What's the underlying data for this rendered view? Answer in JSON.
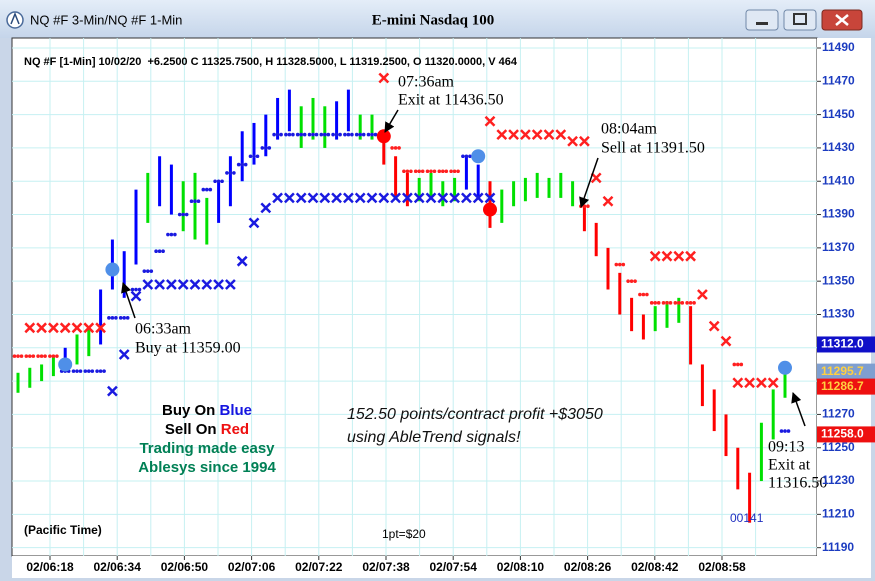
{
  "window": {
    "title": "NQ #F 3-Min/NQ #F 1-Min"
  },
  "chart_data": {
    "type": "price-bars",
    "title": "E-mini Nasdaq 100",
    "header": "NQ #F [1-Min] 10/02/20  +6.2500 C 11325.7500, H 11328.5000, L 11319.2500, O 11320.0000, V 464",
    "ylim": [
      11185,
      11496
    ],
    "yticks": [
      11190,
      11210,
      11230,
      11250,
      11270,
      11290,
      11310,
      11330,
      11350,
      11370,
      11390,
      11410,
      11430,
      11450,
      11470,
      11490
    ],
    "xticks": [
      "02/06:18",
      "02/06:34",
      "02/06:50",
      "02/07:06",
      "02/07:22",
      "02/07:38",
      "02/07:54",
      "02/08:10",
      "02/08:26",
      "02/08:42",
      "02/08:58"
    ],
    "grid": true,
    "palette": {
      "blue": "#0000ff",
      "green": "#00e000",
      "red": "#ff0000"
    },
    "bars": {
      "high": [
        11295,
        11298,
        11300,
        11305,
        11310,
        11318,
        11322,
        11345,
        11375,
        11368,
        11405,
        11415,
        11425,
        11420,
        11410,
        11415,
        11400,
        11410,
        11425,
        11440,
        11445,
        11450,
        11460,
        11465,
        11455,
        11460,
        11455,
        11458,
        11465,
        11450,
        11450,
        11440,
        11425,
        11415,
        11412,
        11415,
        11410,
        11412,
        11425,
        11420,
        11410,
        11405,
        11410,
        11412,
        11415,
        11412,
        11415,
        11410,
        11395,
        11385,
        11370,
        11355,
        11340,
        11330,
        11335,
        11338,
        11340,
        11335,
        11300,
        11285,
        11270,
        11250,
        11235,
        11265,
        11285,
        11300
      ],
      "low": [
        11283,
        11286,
        11290,
        11293,
        11298,
        11300,
        11305,
        11312,
        11345,
        11340,
        11360,
        11385,
        11395,
        11390,
        11380,
        11375,
        11372,
        11385,
        11395,
        11410,
        11420,
        11425,
        11435,
        11440,
        11430,
        11435,
        11430,
        11435,
        11440,
        11435,
        11435,
        11420,
        11400,
        11395,
        11398,
        11400,
        11395,
        11398,
        11405,
        11400,
        11382,
        11385,
        11395,
        11398,
        11400,
        11400,
        11400,
        11395,
        11380,
        11365,
        11345,
        11330,
        11320,
        11315,
        11320,
        11322,
        11325,
        11300,
        11275,
        11260,
        11245,
        11225,
        11205,
        11230,
        11255,
        11280
      ],
      "trend": [
        "green",
        "green",
        "green",
        "green",
        "blue",
        "green",
        "green",
        "blue",
        "blue",
        "blue",
        "blue",
        "green",
        "blue",
        "blue",
        "green",
        "green",
        "green",
        "blue",
        "blue",
        "blue",
        "blue",
        "blue",
        "blue",
        "blue",
        "green",
        "green",
        "green",
        "blue",
        "blue",
        "green",
        "green",
        "red",
        "red",
        "red",
        "green",
        "green",
        "green",
        "green",
        "blue",
        "blue",
        "red",
        "green",
        "green",
        "green",
        "green",
        "green",
        "green",
        "green",
        "red",
        "red",
        "red",
        "red",
        "red",
        "red",
        "green",
        "green",
        "green",
        "red",
        "red",
        "red",
        "red",
        "red",
        "red",
        "green",
        "green",
        "green"
      ]
    },
    "sell_stops": {
      "color": "#ff2020",
      "values": [
        null,
        11322,
        11322,
        11322,
        11322,
        11322,
        11322,
        11322,
        null,
        null,
        null,
        null,
        null,
        null,
        null,
        null,
        null,
        null,
        null,
        null,
        null,
        null,
        null,
        null,
        null,
        null,
        null,
        null,
        null,
        null,
        null,
        11472,
        null,
        null,
        null,
        null,
        null,
        null,
        null,
        null,
        11446,
        11438,
        11438,
        11438,
        11438,
        11438,
        11438,
        11434,
        11434,
        11412,
        11398,
        null,
        null,
        null,
        11365,
        11365,
        11365,
        11365,
        11342,
        11323,
        11314,
        11289,
        11289,
        11289,
        11289,
        null
      ]
    },
    "buy_stops": {
      "color": "#1a1ae0",
      "values": [
        null,
        null,
        null,
        null,
        null,
        null,
        null,
        null,
        11284,
        11306,
        11341,
        11348,
        11348,
        11348,
        11348,
        11348,
        11348,
        11348,
        11348,
        11362,
        11385,
        11394,
        11400,
        11400,
        11400,
        11400,
        11400,
        11400,
        11400,
        11400,
        11400,
        11400,
        11400,
        11400,
        11400,
        11400,
        11400,
        11400,
        11400,
        11400,
        11400,
        null,
        null,
        null,
        null,
        null,
        null,
        null,
        null,
        null,
        null,
        null,
        null,
        null,
        null,
        null,
        null,
        null,
        null,
        null,
        null,
        null,
        null,
        null,
        null,
        null
      ]
    },
    "buy_trail": {
      "color": "#1a1ae0",
      "values": [
        null,
        null,
        null,
        null,
        11296,
        11296,
        11296,
        11296,
        11328,
        11328,
        11345,
        11356,
        11368,
        11378,
        11390,
        11398,
        11405,
        11410,
        11415,
        11420,
        11425,
        11430,
        11438,
        11438,
        11438,
        11438,
        11438,
        11438,
        11438,
        11438,
        11438,
        null,
        null,
        null,
        null,
        null,
        null,
        null,
        11425,
        11425,
        null,
        null,
        null,
        null,
        null,
        null,
        null,
        null,
        null,
        null,
        null,
        null,
        null,
        null,
        null,
        null,
        null,
        null,
        null,
        null,
        null,
        null,
        null,
        null,
        null,
        11260
      ]
    },
    "sell_trail": {
      "color": "#ff2020",
      "values": [
        11305,
        11305,
        11305,
        11305,
        null,
        null,
        null,
        null,
        null,
        null,
        null,
        null,
        null,
        null,
        null,
        null,
        null,
        null,
        null,
        null,
        null,
        null,
        null,
        null,
        null,
        null,
        null,
        null,
        null,
        null,
        null,
        null,
        11430,
        11416,
        11416,
        11416,
        11416,
        11416,
        null,
        null,
        null,
        null,
        null,
        null,
        null,
        null,
        null,
        null,
        11395,
        null,
        null,
        11360,
        11350,
        11342,
        11337,
        11337,
        11337,
        11337,
        null,
        null,
        null,
        11300,
        null,
        null,
        null,
        null
      ]
    },
    "signals": [
      {
        "bar": 4,
        "value": 11300,
        "color": "#4f8fe8"
      },
      {
        "bar": 8,
        "value": 11357,
        "color": "#4f8fe8"
      },
      {
        "bar": 31,
        "value": 11437,
        "color": "#ff0000"
      },
      {
        "bar": 39,
        "value": 11425,
        "color": "#4f8fe8"
      },
      {
        "bar": 40,
        "value": 11393,
        "color": "#ff0000"
      },
      {
        "bar": 65,
        "value": 11298,
        "color": "#4f8fe8"
      }
    ],
    "price_labels": [
      {
        "value": 11312.0,
        "label": "11312.0",
        "bg": "#1010c8",
        "fg": "#ffffff"
      },
      {
        "value": 11295.7,
        "label": "11295.7",
        "bg": "#7f9fd0",
        "fg": "#ffd040"
      },
      {
        "value": 11286.7,
        "label": "11286.7",
        "bg": "#ee1010",
        "fg": "#ffd040"
      },
      {
        "value": 11258.0,
        "label": "11258.0",
        "bg": "#ee1010",
        "fg": "#ffffff"
      }
    ],
    "annotations": {
      "exit1": [
        "07:36am",
        "Exit at 11436.50"
      ],
      "buy": [
        "06:33am",
        "Buy at 11359.00"
      ],
      "sell": [
        "08:04am",
        "Sell at 11391.50"
      ],
      "exit2": [
        "09:13",
        "Exit at",
        "11316.50"
      ],
      "counter": "00141",
      "profit": [
        "152.50 points/contract profit +$3050",
        "using AbleTrend signals!"
      ],
      "legend": {
        "buy_prefix": "Buy On ",
        "buy_word": "Blue",
        "sell_prefix": "Sell On ",
        "sell_word": "Red",
        "line3": "Trading made easy",
        "line4": "Ablesys since 1994"
      },
      "timezone": "(Pacific Time)",
      "point_value": "1pt=$20"
    }
  }
}
